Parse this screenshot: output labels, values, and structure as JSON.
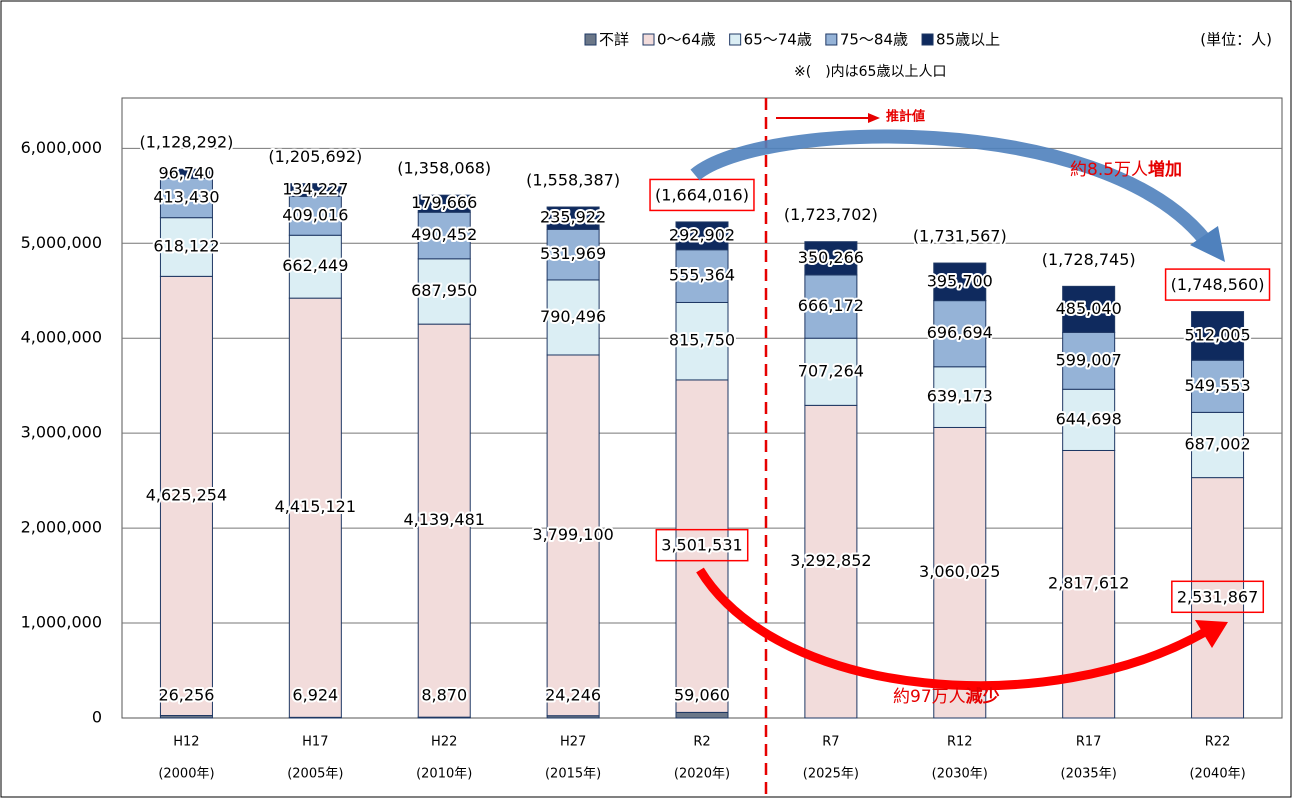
{
  "chart_data": {
    "type": "stacked-bar",
    "categories": [
      "H12",
      "H17",
      "H22",
      "H27",
      "R2",
      "R7",
      "R12",
      "R17",
      "R22"
    ],
    "category_sublabels": [
      "(2000年)",
      "(2005年)",
      "(2010年)",
      "(2015年)",
      "(2020年)",
      "(2025年)",
      "(2030年)",
      "(2035年)",
      "(2040年)"
    ],
    "series": [
      {
        "name": "不詳",
        "color": "#6b7788",
        "values": [
          26256,
          6924,
          8870,
          24246,
          59060,
          null,
          null,
          null,
          null
        ],
        "value_labels": [
          "26,256",
          "6,924",
          "8,870",
          "24,246",
          "59,060",
          null,
          null,
          null,
          null
        ]
      },
      {
        "name": "0〜64歳",
        "color": "#f2dcdb",
        "values": [
          4625254,
          4415121,
          4139481,
          3799100,
          3501531,
          3292852,
          3060025,
          2817612,
          2531867
        ],
        "value_labels": [
          "4,625,254",
          "4,415,121",
          "4,139,481",
          "3,799,100",
          "3,501,531",
          "3,292,852",
          "3,060,025",
          "2,817,612",
          "2,531,867"
        ]
      },
      {
        "name": "65〜74歳",
        "color": "#dbeef4",
        "values": [
          618122,
          662449,
          687950,
          790496,
          815750,
          707264,
          639173,
          644698,
          687002
        ],
        "value_labels": [
          "618,122",
          "662,449",
          "687,950",
          "790,496",
          "815,750",
          "707,264",
          "639,173",
          "644,698",
          "687,002"
        ]
      },
      {
        "name": "75〜84歳",
        "color": "#95b3d7",
        "values": [
          413430,
          409016,
          490452,
          531969,
          555364,
          666172,
          696694,
          599007,
          549553
        ],
        "value_labels": [
          "413,430",
          "409,016",
          "490,452",
          "531,969",
          "555,364",
          "666,172",
          "696,694",
          "599,007",
          "549,553"
        ]
      },
      {
        "name": "85歳以上",
        "color": "#0f2a5e",
        "values": [
          96740,
          134227,
          179666,
          235922,
          292902,
          350266,
          395700,
          485040,
          512005
        ],
        "value_labels": [
          "96,740",
          "134,227",
          "179,666",
          "235,922",
          "292,902",
          "350,266",
          "395,700",
          "485,040",
          "512,005"
        ]
      }
    ],
    "totals_65plus": {
      "values": [
        1128292,
        1205692,
        1358068,
        1558387,
        1664016,
        1723702,
        1731567,
        1728745,
        1748560
      ],
      "value_labels": [
        "(1,128,292)",
        "(1,205,692)",
        "(1,358,068)",
        "(1,558,387)",
        "(1,664,016)",
        "(1,723,702)",
        "(1,731,567)",
        "(1,728,745)",
        "(1,748,560)"
      ]
    },
    "ylim": [
      0,
      6530000
    ],
    "yticks": [
      {
        "value": 0,
        "label": "0"
      },
      {
        "value": 1000000,
        "label": "1,000,000"
      },
      {
        "value": 2000000,
        "label": "2,000,000"
      },
      {
        "value": 3000000,
        "label": "3,000,000"
      },
      {
        "value": 4000000,
        "label": "4,000,000"
      },
      {
        "value": 5000000,
        "label": "5,000,000"
      },
      {
        "value": 6000000,
        "label": "6,000,000"
      }
    ],
    "grid": true,
    "unit": "(単位：人)",
    "note": "※(　)内は65歳以上人口",
    "annotations": {
      "estimate": "推計値",
      "increase_prefix": "約8.5万人",
      "increase": "増加",
      "decrease_prefix": "約97万人",
      "decrease": "減少"
    }
  }
}
